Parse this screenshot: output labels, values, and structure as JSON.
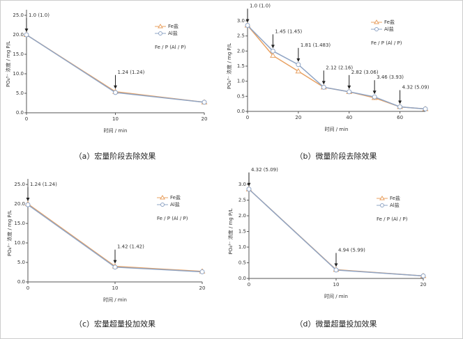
{
  "chart_data": [
    {
      "type": "line",
      "caption": "（a）宏量阶段去除效果",
      "xlabel": "时间 / min",
      "ylabel": "PO₄³⁻ 浓度 / mg P/L",
      "note": "Fe / P (Al / P)",
      "x": [
        0,
        10,
        20
      ],
      "xlim": [
        0,
        20
      ],
      "xticks": [
        0,
        10,
        20
      ],
      "ylim": [
        0,
        25
      ],
      "yticks": [
        {
          "value": 0,
          "label": "0.0"
        },
        {
          "value": 5,
          "label": "5.0"
        },
        {
          "value": 10,
          "label": "10.0"
        },
        {
          "value": 15,
          "label": "15.0"
        },
        {
          "value": 20,
          "label": "20.0"
        },
        {
          "value": 25,
          "label": "25.0"
        }
      ],
      "series": [
        {
          "name": "Fe盐",
          "color": "#e8a060",
          "marker": "triangle",
          "values": [
            20.0,
            5.4,
            2.7
          ]
        },
        {
          "name": "Al盐",
          "color": "#8fa4c4",
          "marker": "circle",
          "values": [
            20.0,
            5.2,
            2.7
          ]
        }
      ],
      "annotations": [
        {
          "text": "1.0 (1.0)",
          "x": 0
        },
        {
          "text": "1.24 (1.24)",
          "x": 10
        }
      ]
    },
    {
      "type": "line",
      "caption": "（b）微量阶段去除效果",
      "xlabel": "时间 / min",
      "ylabel": "PO₄³⁻ 浓度 / mg P/L",
      "note": "Fe / P (Al / P)",
      "x": [
        0,
        10,
        20,
        30,
        40,
        50,
        60,
        70
      ],
      "xlim": [
        0,
        70
      ],
      "xticks": [
        0,
        20,
        40,
        60
      ],
      "ylim": [
        0,
        3
      ],
      "yticks": [
        {
          "value": 0,
          "label": "0.0"
        },
        0.5,
        {
          "value": 1,
          "label": "1.0"
        },
        1.5,
        {
          "value": 2,
          "label": "2.0"
        },
        2.5,
        {
          "value": 3,
          "label": "3.0"
        }
      ],
      "series": [
        {
          "name": "Fe盐",
          "color": "#e8a060",
          "marker": "triangle",
          "values": [
            2.85,
            1.85,
            1.33,
            0.8,
            0.65,
            0.45,
            0.15,
            0.08
          ]
        },
        {
          "name": "Al盐",
          "color": "#8fa4c4",
          "marker": "circle",
          "values": [
            2.85,
            2.0,
            1.55,
            0.8,
            0.65,
            0.48,
            0.15,
            0.08
          ]
        }
      ],
      "annotations": [
        {
          "text": "1.0 (1.0)",
          "x": 0
        },
        {
          "text": "1.45 (1.45)",
          "x": 10
        },
        {
          "text": "1.81 (1.483)",
          "x": 20
        },
        {
          "text": "2.12 (2.16)",
          "x": 30
        },
        {
          "text": "2.82 (3.06)",
          "x": 40
        },
        {
          "text": "3.46 (3.93)",
          "x": 50
        },
        {
          "text": "4.32 (5.09)",
          "x": 60
        }
      ]
    },
    {
      "type": "line",
      "caption": "（c）宏量超量投加效果",
      "xlabel": "时间 / min",
      "ylabel": "PO₄³⁻ 浓度 / mg P/L",
      "note": "Fe / P (Al / P)",
      "x": [
        0,
        10,
        20
      ],
      "xlim": [
        0,
        20
      ],
      "xticks": [
        0,
        10,
        20
      ],
      "ylim": [
        0,
        25
      ],
      "yticks": [
        {
          "value": 0,
          "label": "0.0"
        },
        {
          "value": 5,
          "label": "5.0"
        },
        {
          "value": 10,
          "label": "10.0"
        },
        {
          "value": 15,
          "label": "15.0"
        },
        {
          "value": 20,
          "label": "20.0"
        },
        {
          "value": 25,
          "label": "25.0"
        }
      ],
      "series": [
        {
          "name": "Fe盐",
          "color": "#e8a060",
          "marker": "triangle",
          "values": [
            20.0,
            4.0,
            2.7
          ]
        },
        {
          "name": "Al盐",
          "color": "#8fa4c4",
          "marker": "circle",
          "values": [
            19.8,
            3.8,
            2.6
          ]
        }
      ],
      "annotations": [
        {
          "text": "1.24 (1.24)",
          "x": 0
        },
        {
          "text": "1.42 (1.42)",
          "x": 10
        }
      ]
    },
    {
      "type": "line",
      "caption": "（d）微量超量投加效果",
      "xlabel": "时间 / min",
      "ylabel": "PO₄³⁻ 浓度 / mg P/L",
      "note": "Fe / P (Al / P)",
      "x": [
        0,
        10,
        20
      ],
      "xlim": [
        0,
        20
      ],
      "xticks": [
        0,
        10,
        20
      ],
      "ylim": [
        0,
        3
      ],
      "yticks": [
        {
          "value": 0,
          "label": "0.0"
        },
        0.5,
        {
          "value": 1,
          "label": "1.0"
        },
        1.5,
        {
          "value": 2,
          "label": "2.0"
        },
        2.5,
        {
          "value": 3,
          "label": "3.0"
        }
      ],
      "series": [
        {
          "name": "Fe盐",
          "color": "#e8a060",
          "marker": "triangle",
          "values": [
            2.85,
            0.28,
            0.08
          ]
        },
        {
          "name": "Al盐",
          "color": "#8fa4c4",
          "marker": "circle",
          "values": [
            2.85,
            0.27,
            0.08
          ]
        }
      ],
      "annotations": [
        {
          "text": "4.32 (5.09)",
          "x": 0
        },
        {
          "text": "4.94 (5.99)",
          "x": 10
        }
      ]
    }
  ]
}
